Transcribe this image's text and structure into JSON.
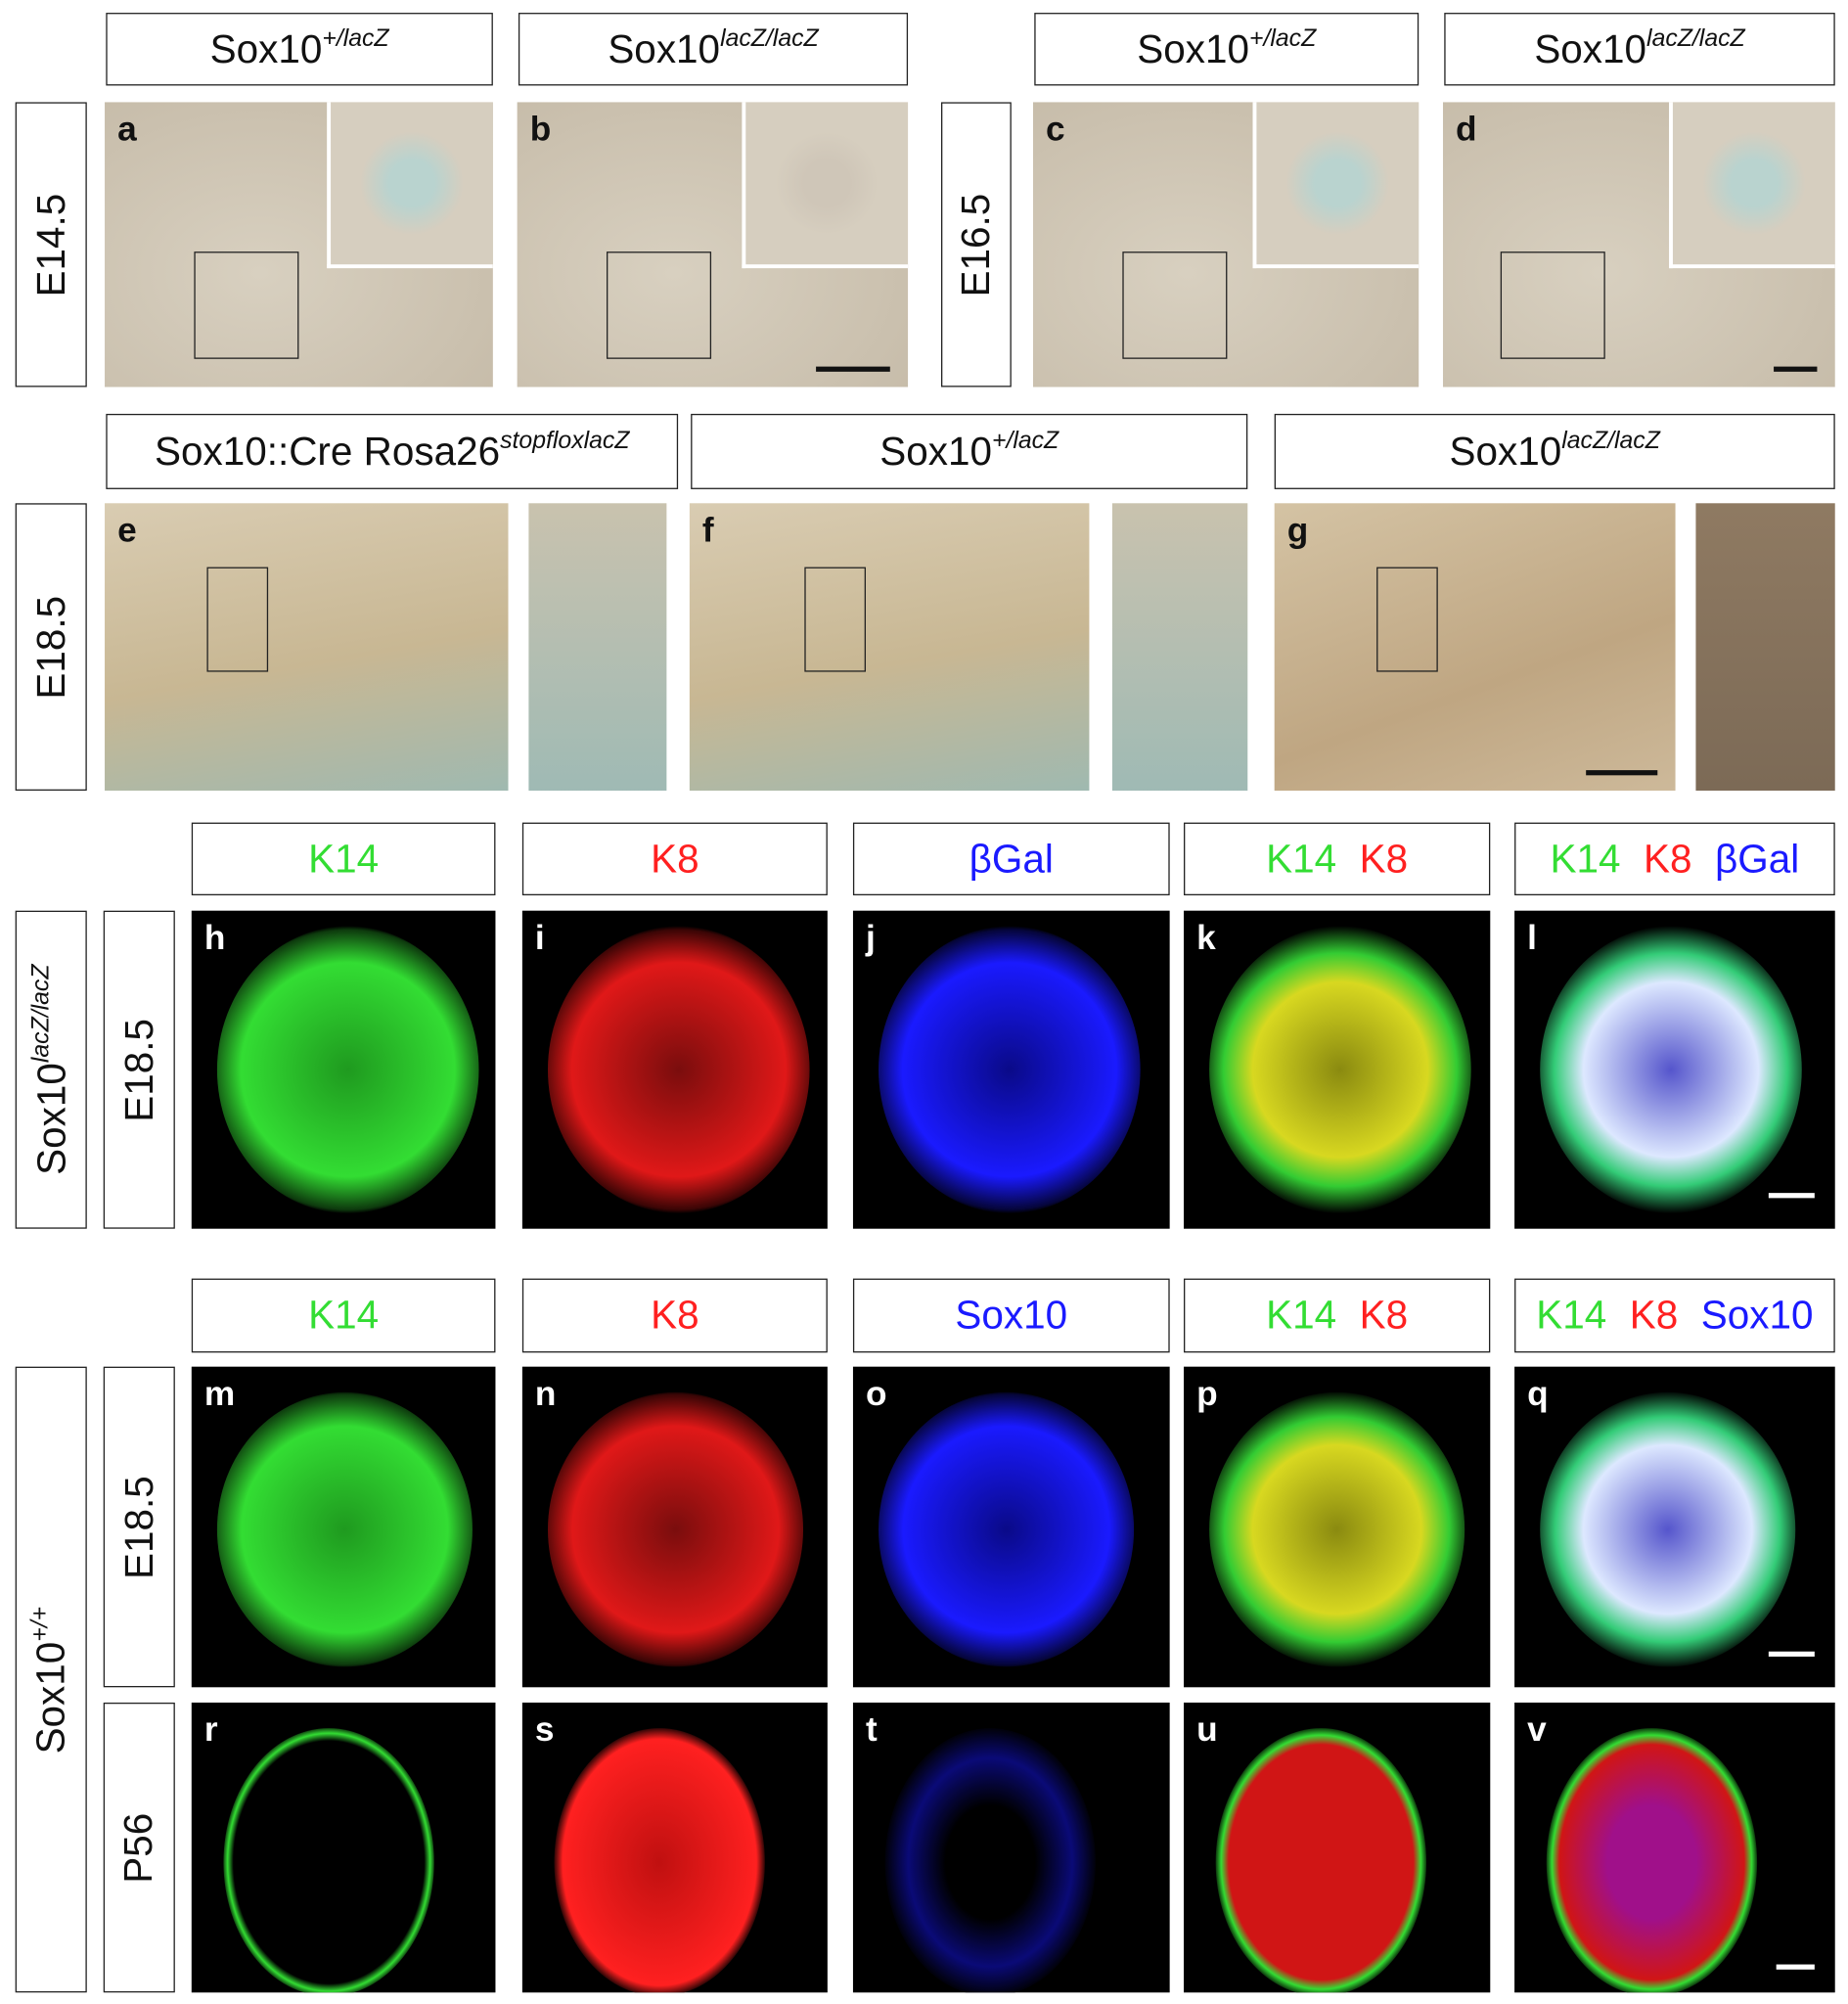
{
  "row1": {
    "headers": [
      {
        "base": "Sox10",
        "sup": "+/lacZ"
      },
      {
        "base": "Sox10",
        "sup": "lacZ/lacZ"
      },
      {
        "base": "Sox10",
        "sup": "+/lacZ"
      },
      {
        "base": "Sox10",
        "sup": "lacZ/lacZ"
      }
    ],
    "stages": [
      "E14.5",
      "E16.5"
    ],
    "panels": [
      "a",
      "b",
      "c",
      "d"
    ]
  },
  "row2": {
    "headers": [
      {
        "base": "Sox10::Cre Rosa26",
        "sup": "stopfloxlacZ"
      },
      {
        "base": "Sox10",
        "sup": "+/lacZ"
      },
      {
        "base": "Sox10",
        "sup": "lacZ/lacZ"
      }
    ],
    "stage": "E18.5",
    "panels": [
      "e",
      "f",
      "g"
    ]
  },
  "row3": {
    "genotype": {
      "base": "Sox10",
      "sup": "lacZ/lacZ"
    },
    "stage": "E18.5",
    "headers": [
      [
        {
          "text": "K14",
          "color": "#33dd33"
        }
      ],
      [
        {
          "text": "K8",
          "color": "#ff2020"
        }
      ],
      [
        {
          "text": "βGal",
          "color": "#1a1aff"
        }
      ],
      [
        {
          "text": "K14",
          "color": "#33dd33"
        },
        {
          "text": "K8",
          "color": "#ff2020"
        }
      ],
      [
        {
          "text": "K14",
          "color": "#33dd33"
        },
        {
          "text": "K8",
          "color": "#ff2020"
        },
        {
          "text": "βGal",
          "color": "#1a1aff"
        }
      ]
    ],
    "panels": [
      "h",
      "i",
      "j",
      "k",
      "l"
    ]
  },
  "row4": {
    "genotype": {
      "base": "Sox10",
      "sup": "+/+"
    },
    "stages": [
      "E18.5",
      "P56"
    ],
    "headers": [
      [
        {
          "text": "K14",
          "color": "#33dd33"
        }
      ],
      [
        {
          "text": "K8",
          "color": "#ff2020"
        }
      ],
      [
        {
          "text": "Sox10",
          "color": "#1a1aff"
        }
      ],
      [
        {
          "text": "K14",
          "color": "#33dd33"
        },
        {
          "text": "K8",
          "color": "#ff2020"
        }
      ],
      [
        {
          "text": "K14",
          "color": "#33dd33"
        },
        {
          "text": "K8",
          "color": "#ff2020"
        },
        {
          "text": "Sox10",
          "color": "#1a1aff"
        }
      ]
    ],
    "panels": [
      [
        "m",
        "n",
        "o",
        "p",
        "q"
      ],
      [
        "r",
        "s",
        "t",
        "u",
        "v"
      ]
    ]
  }
}
